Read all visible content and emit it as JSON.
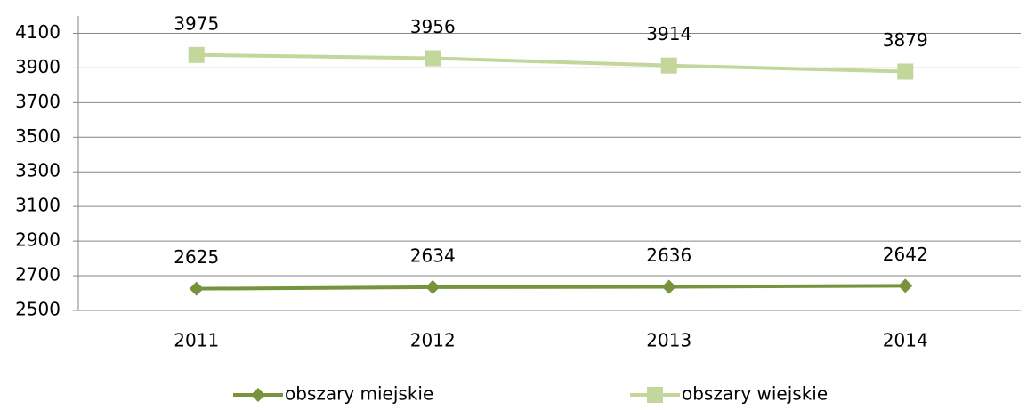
{
  "chart_data": {
    "type": "line",
    "categories": [
      "2011",
      "2012",
      "2013",
      "2014"
    ],
    "series": [
      {
        "name": "obszary miejskie",
        "color": "#77933c",
        "marker": "diamond",
        "values": [
          2625,
          2634,
          2636,
          2642
        ]
      },
      {
        "name": "obszary wiejskie",
        "color": "#c3d69b",
        "marker": "square",
        "values": [
          3975,
          3956,
          3914,
          3879
        ]
      }
    ],
    "ylim": [
      2500,
      4200
    ],
    "yticks": [
      2500,
      2700,
      2900,
      3100,
      3300,
      3500,
      3700,
      3900,
      4100
    ],
    "grid": true,
    "legend": "bottom"
  }
}
